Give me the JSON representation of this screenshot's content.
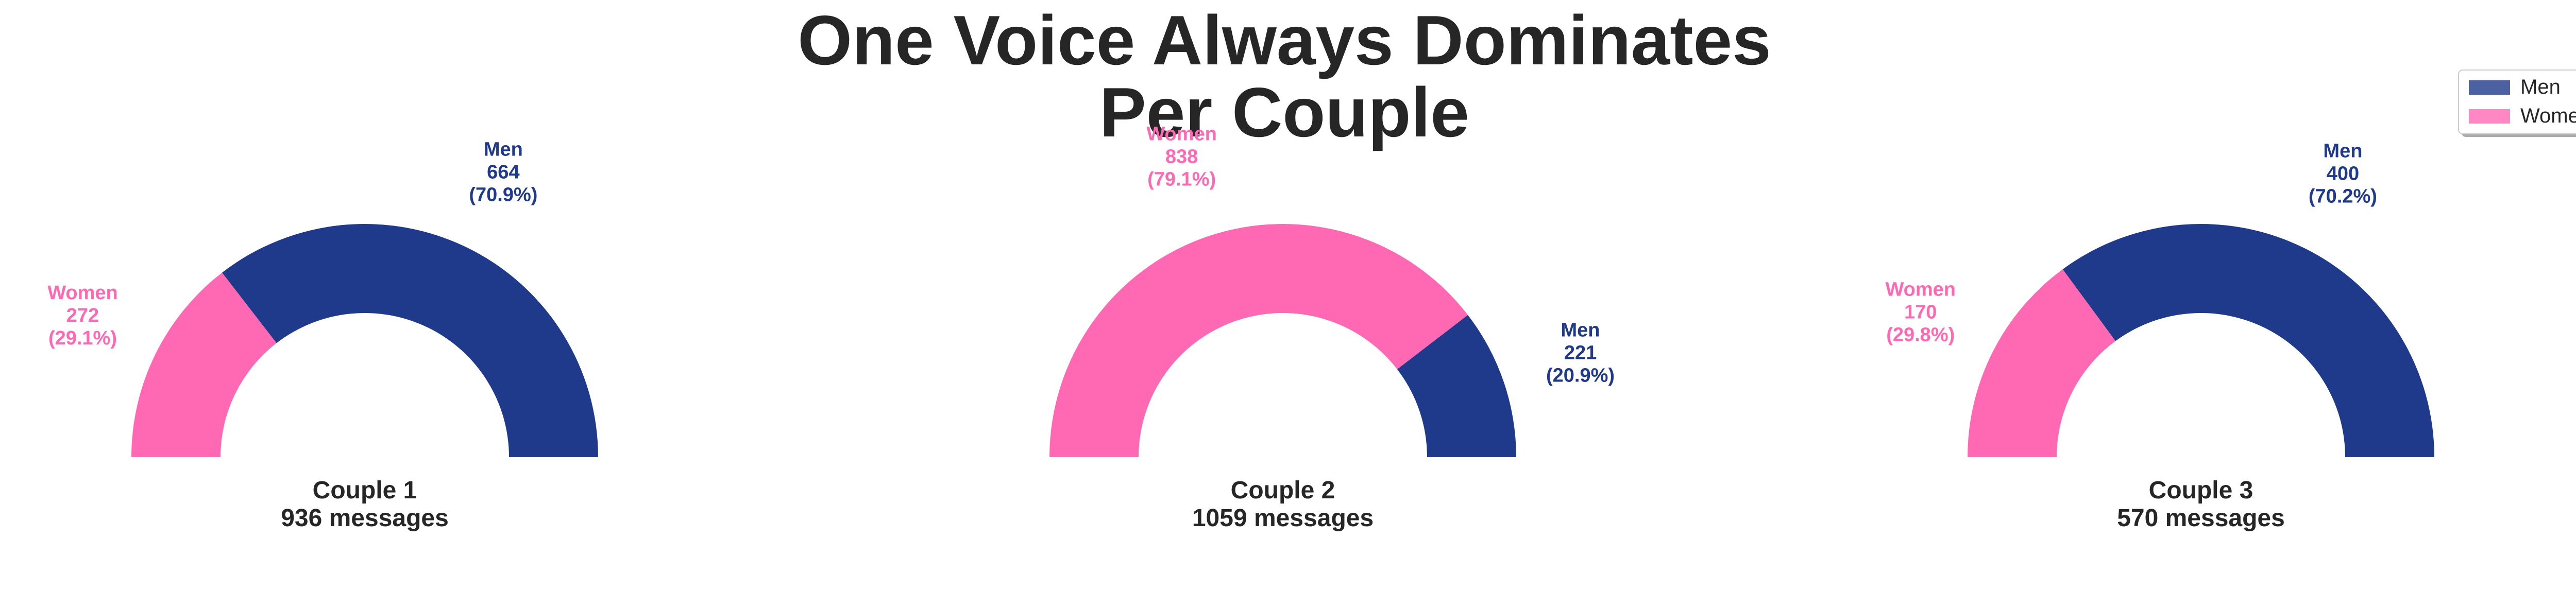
{
  "chart_data": {
    "type": "pie",
    "title": "One Voice Always Dominates\nPer Couple",
    "legend": {
      "position": "top-right",
      "entries": [
        {
          "label": "Men",
          "color": "#1f3a8a"
        },
        {
          "label": "Women",
          "color": "#ff69b4"
        }
      ]
    },
    "couples": [
      {
        "name": "Couple 1",
        "caption_line1": "Couple 1",
        "caption_line2": "936 messages",
        "total": 936,
        "slices": [
          {
            "label": "Women",
            "value": 272,
            "count_text": "272",
            "pct_text": "(29.1%)",
            "color": "#ff69b4"
          },
          {
            "label": "Men",
            "value": 664,
            "count_text": "664",
            "pct_text": "(70.9%)",
            "color": "#1f3a8a"
          }
        ]
      },
      {
        "name": "Couple 2",
        "caption_line1": "Couple 2",
        "caption_line2": "1059 messages",
        "total": 1059,
        "slices": [
          {
            "label": "Women",
            "value": 838,
            "count_text": "838",
            "pct_text": "(79.1%)",
            "color": "#ff69b4"
          },
          {
            "label": "Men",
            "value": 221,
            "count_text": "221",
            "pct_text": "(20.9%)",
            "color": "#1f3a8a"
          }
        ]
      },
      {
        "name": "Couple 3",
        "caption_line1": "Couple 3",
        "caption_line2": "570 messages",
        "total": 570,
        "slices": [
          {
            "label": "Women",
            "value": 170,
            "count_text": "170",
            "pct_text": "(29.8%)",
            "color": "#ff69b4"
          },
          {
            "label": "Men",
            "value": 400,
            "count_text": "400",
            "pct_text": "(70.2%)",
            "color": "#1f3a8a"
          }
        ]
      }
    ]
  }
}
